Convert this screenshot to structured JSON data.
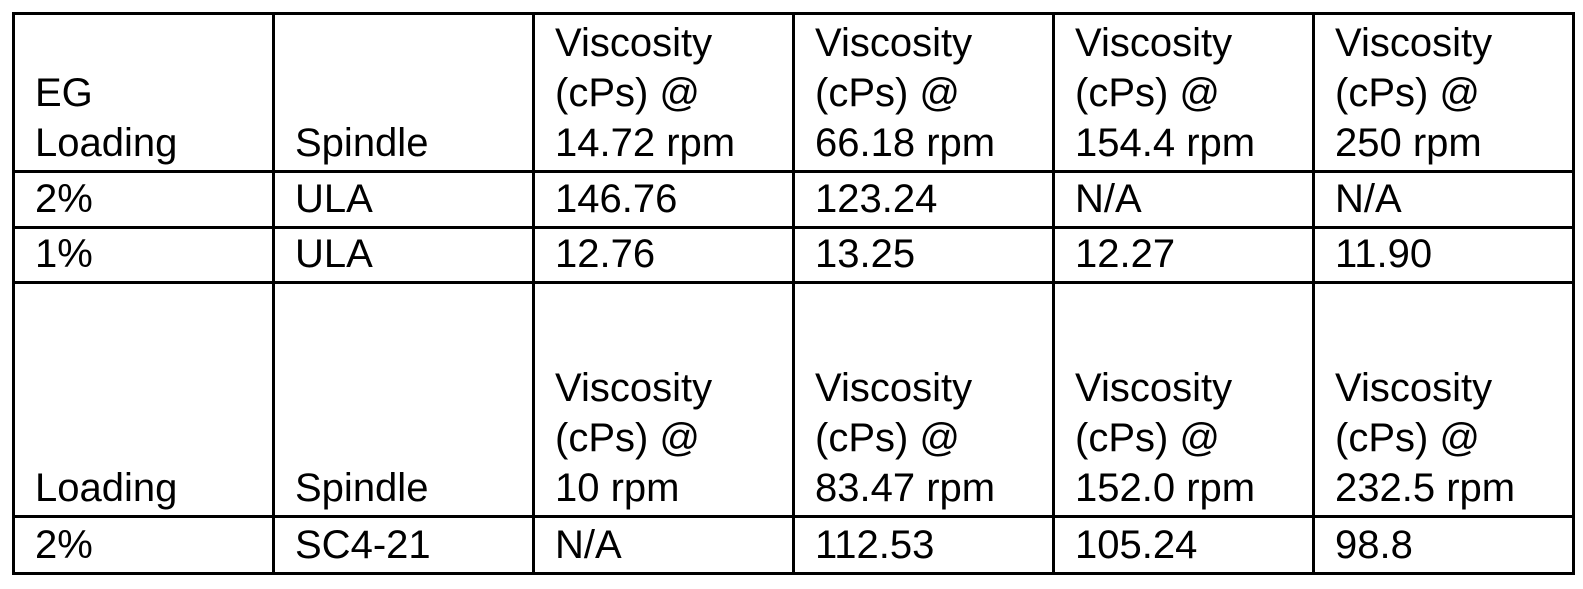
{
  "table": {
    "rows": [
      [
        "EG\nLoading",
        "Spindle",
        "Viscosity\n(cPs) @\n14.72 rpm",
        "Viscosity\n(cPs) @\n66.18 rpm",
        "Viscosity\n(cPs) @\n154.4 rpm",
        "Viscosity\n(cPs) @\n250 rpm"
      ],
      [
        "2%",
        "ULA",
        "146.76",
        "123.24",
        "N/A",
        "N/A"
      ],
      [
        "1%",
        "ULA",
        "12.76",
        "13.25",
        "12.27",
        "11.90"
      ],
      [
        "Loading",
        "Spindle",
        "Viscosity\n(cPs) @\n10 rpm",
        "Viscosity\n(cPs) @\n83.47 rpm",
        "Viscosity\n(cPs) @\n152.0 rpm",
        "Viscosity\n(cPs) @\n232.5 rpm"
      ],
      [
        "2%",
        "SC4-21",
        "N/A",
        "112.53",
        "105.24",
        "98.8"
      ]
    ]
  }
}
